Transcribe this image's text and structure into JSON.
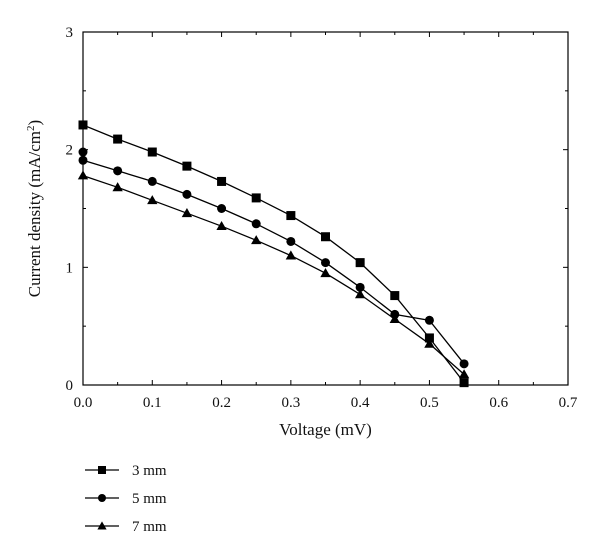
{
  "chart_data": {
    "type": "line",
    "title": "",
    "xlabel": "Voltage (mV)",
    "ylabel": {
      "text": "Current density (mA/cm",
      "superscript": "2",
      "suffix": ")"
    },
    "xlim": [
      0,
      0.7
    ],
    "ylim": [
      0,
      3
    ],
    "xticks": [
      "0.0",
      "0.1",
      "0.2",
      "0.3",
      "0.4",
      "0.5",
      "0.6",
      "0.7"
    ],
    "xtick_values": [
      0.0,
      0.1,
      0.2,
      0.3,
      0.4,
      0.5,
      0.6,
      0.7
    ],
    "yticks": [
      "0",
      "1",
      "2",
      "3"
    ],
    "ytick_values": [
      0,
      1,
      2,
      3
    ],
    "grid": false,
    "legend_position": "below-left",
    "series": [
      {
        "name": "3 mm",
        "marker": "square",
        "x": [
          0.0,
          0.05,
          0.1,
          0.15,
          0.2,
          0.25,
          0.3,
          0.35,
          0.4,
          0.45,
          0.5,
          0.55
        ],
        "y": [
          2.21,
          2.09,
          1.98,
          1.86,
          1.73,
          1.59,
          1.44,
          1.26,
          1.04,
          0.76,
          0.4,
          0.02
        ]
      },
      {
        "name": "5 mm",
        "marker": "circle",
        "x": [
          0.0,
          0.0,
          0.05,
          0.1,
          0.15,
          0.2,
          0.25,
          0.3,
          0.35,
          0.4,
          0.45,
          0.5,
          0.55
        ],
        "y": [
          1.98,
          1.91,
          1.82,
          1.73,
          1.62,
          1.5,
          1.37,
          1.22,
          1.04,
          0.83,
          0.6,
          0.55,
          0.18
        ]
      },
      {
        "name": "7 mm",
        "marker": "triangle",
        "x": [
          0.0,
          0.05,
          0.1,
          0.15,
          0.2,
          0.25,
          0.3,
          0.35,
          0.4,
          0.45,
          0.5,
          0.55
        ],
        "y": [
          1.78,
          1.68,
          1.57,
          1.46,
          1.35,
          1.23,
          1.1,
          0.95,
          0.77,
          0.56,
          0.35,
          0.09
        ]
      }
    ]
  },
  "colors": {
    "line": "#000000",
    "axis": "#000000",
    "background": "#ffffff"
  }
}
